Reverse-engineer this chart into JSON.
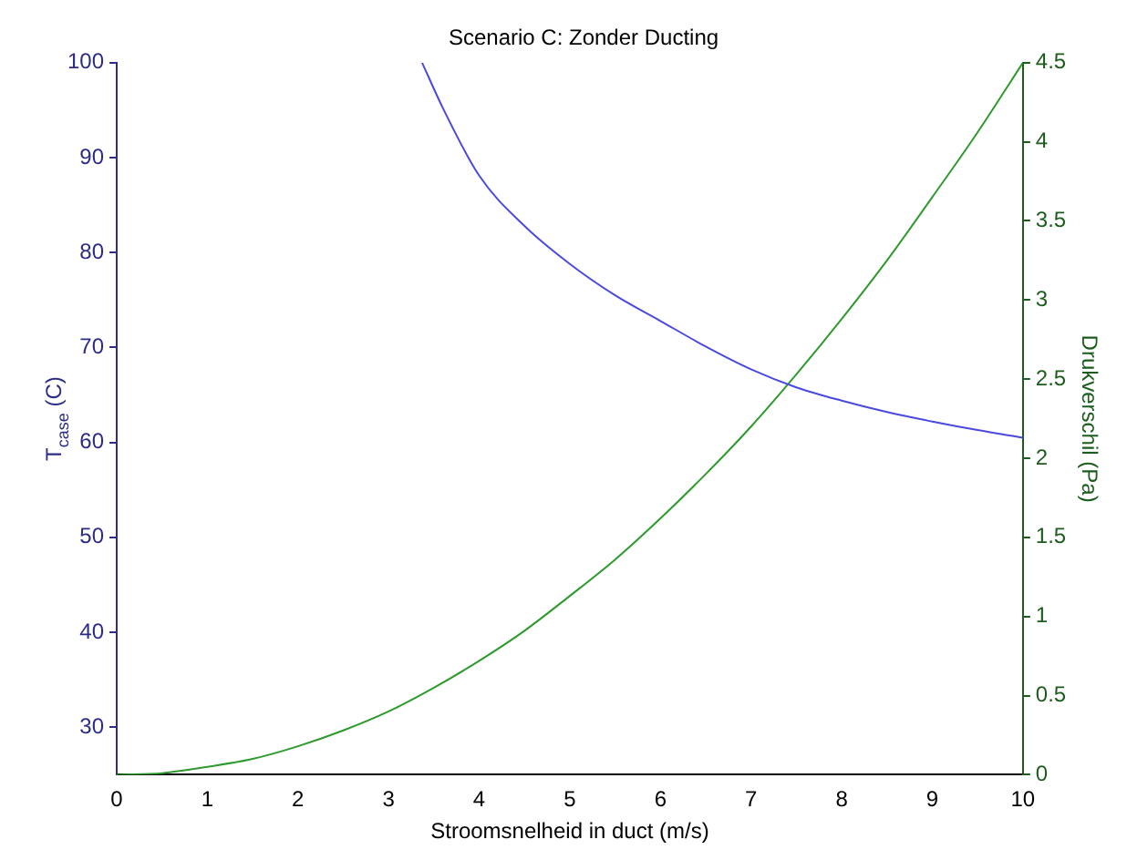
{
  "chart_data": {
    "type": "line",
    "title": "Scenario C: Zonder Ducting",
    "xlabel": "Stroomsnelheid in duct (m/s)",
    "ylabel": "T$_{case}$ (C)",
    "y2label": "Drukverschil (Pa)",
    "xlim": [
      0,
      10
    ],
    "xticks": [
      0,
      1,
      2,
      3,
      4,
      5,
      6,
      7,
      8,
      9,
      10
    ],
    "ylim": [
      25,
      100
    ],
    "yticks": [
      30,
      40,
      50,
      60,
      70,
      80,
      90,
      100
    ],
    "y2lim": [
      0,
      4.5
    ],
    "y2ticks": [
      0,
      0.5,
      1,
      1.5,
      2,
      2.5,
      3,
      3.5,
      4,
      4.5
    ],
    "grid": false,
    "legend": false,
    "marker": "none",
    "line_style": "solid",
    "series": [
      {
        "color": "#4a4ae0",
        "x": [
          3.37,
          3.6,
          4,
          4.5,
          5,
          5.5,
          6,
          6.5,
          7,
          7.5,
          8,
          8.5,
          9,
          9.5,
          10
        ],
        "values": [
          100,
          95.2,
          88.1,
          82.8,
          78.8,
          75.5,
          72.8,
          70.1,
          67.7,
          65.8,
          64.4,
          63.2,
          62.2,
          61.3,
          60.5
        ]
      },
      {
        "color": "#2e9a2e",
        "axis": "y2",
        "x": [
          0,
          0.5,
          1,
          1.5,
          2,
          2.5,
          3,
          3.5,
          4,
          4.5,
          5,
          5.5,
          6,
          6.5,
          7,
          7.5,
          8,
          8.5,
          9,
          9.5,
          10
        ],
        "values": [
          0,
          0.01,
          0.05,
          0.1,
          0.18,
          0.28,
          0.4,
          0.55,
          0.72,
          0.91,
          1.13,
          1.36,
          1.62,
          1.9,
          2.2,
          2.53,
          2.88,
          3.25,
          3.65,
          4.06,
          4.5
        ]
      }
    ]
  }
}
